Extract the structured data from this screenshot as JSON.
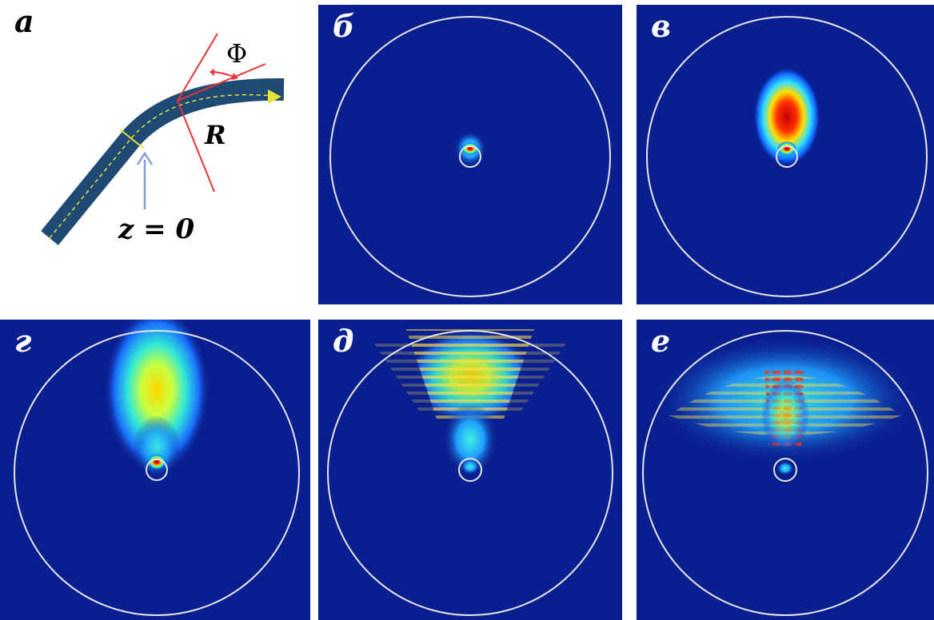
{
  "panels": [
    {
      "id": "a",
      "label": "а"
    },
    {
      "id": "b",
      "label": "б"
    },
    {
      "id": "v",
      "label": "в"
    },
    {
      "id": "g",
      "label": "г"
    },
    {
      "id": "d",
      "label": "д"
    },
    {
      "id": "e",
      "label": "е"
    }
  ],
  "diagram": {
    "phi_label": "Φ",
    "r_label": "R",
    "z_label": "z = 0"
  },
  "colors": {
    "field_background": "#0a1f8f",
    "fiber_body": "#1f4a73",
    "axis_line": "#e8e23a",
    "construction_lines": "#e8353a",
    "arrow_indicator": "#7fa0d8",
    "ring_outline": "#e6e6e6"
  }
}
